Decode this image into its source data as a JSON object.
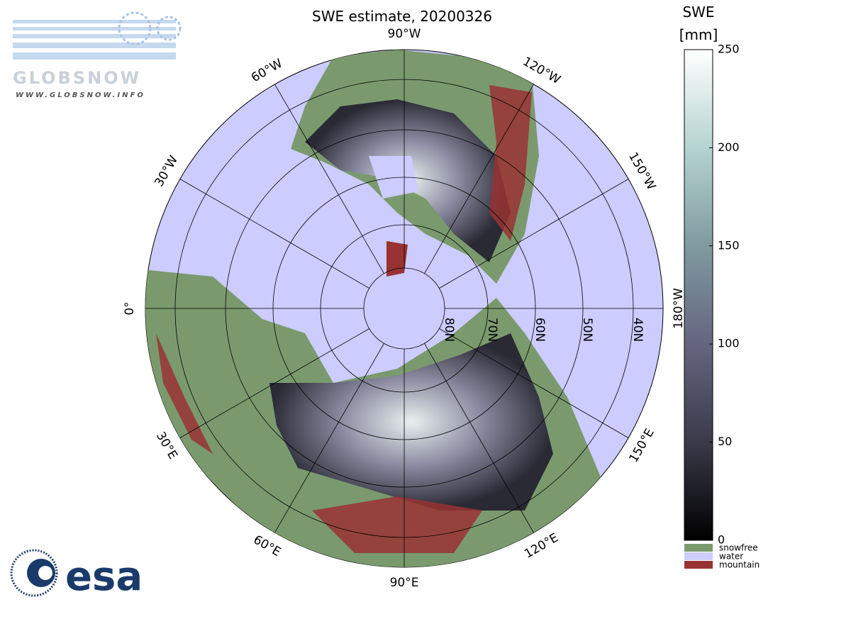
{
  "header": {
    "title": "SWE estimate, 20200326"
  },
  "logos": {
    "globsnow": "GLOBSNOW",
    "globsnow_url": "WWW.GLOBSNOW.INFO",
    "esa": "esa"
  },
  "map": {
    "longitude_labels": [
      "0°",
      "30°E",
      "60°E",
      "90°E",
      "120°E",
      "150°E",
      "180°W",
      "150°W",
      "120°W",
      "90°W",
      "60°W",
      "30°W"
    ],
    "latitude_labels": [
      "80N",
      "70N",
      "60N",
      "50N",
      "40N"
    ]
  },
  "colorbar": {
    "label": [
      "SWE",
      "[mm]"
    ],
    "lim": [
      0,
      250
    ],
    "ticks": [
      0,
      50,
      100,
      150,
      200,
      250
    ],
    "classes": [
      {
        "name": "snowfree",
        "color": "#7a9a6e"
      },
      {
        "name": "water",
        "color": "#ccccff"
      },
      {
        "name": "mountain",
        "color": "#993333"
      }
    ]
  }
}
